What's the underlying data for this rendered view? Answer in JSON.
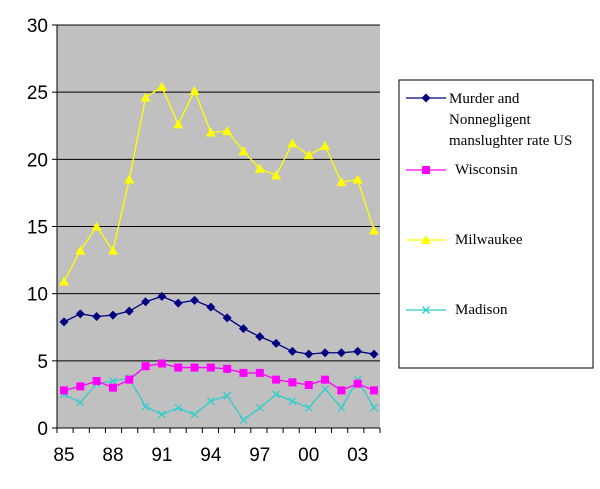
{
  "chart_data": {
    "type": "line",
    "x": [
      1985,
      1986,
      1987,
      1988,
      1989,
      1990,
      1991,
      1992,
      1993,
      1994,
      1995,
      1996,
      1997,
      1998,
      1999,
      2000,
      2001,
      2002,
      2003,
      2004
    ],
    "x_tick_labels": [
      "85",
      "88",
      "91",
      "94",
      "97",
      "00",
      "03"
    ],
    "x_tick_values": [
      1985,
      1988,
      1991,
      1994,
      1997,
      2000,
      2003
    ],
    "y_tick_labels": [
      "0",
      "5",
      "10",
      "15",
      "20",
      "25",
      "30"
    ],
    "ylim": [
      0,
      30
    ],
    "grid": "horizontal",
    "legend_position": "right",
    "plot_background": "#c0c0c0",
    "series": [
      {
        "name_lines": [
          "Murder and",
          "Nonnegligent",
          "manslughter rate US"
        ],
        "color": "#000080",
        "marker": "diamond",
        "values": [
          7.9,
          8.5,
          8.3,
          8.4,
          8.7,
          9.4,
          9.8,
          9.3,
          9.5,
          9.0,
          8.2,
          7.4,
          6.8,
          6.3,
          5.7,
          5.5,
          5.6,
          5.6,
          5.7,
          5.5
        ]
      },
      {
        "name_lines": [
          "Wisconsin"
        ],
        "color": "#ff00ff",
        "marker": "square",
        "values": [
          2.8,
          3.1,
          3.5,
          3.0,
          3.6,
          4.6,
          4.8,
          4.5,
          4.5,
          4.5,
          4.4,
          4.1,
          4.1,
          3.6,
          3.4,
          3.2,
          3.6,
          2.8,
          3.3,
          2.8
        ]
      },
      {
        "name_lines": [
          "Milwaukee"
        ],
        "color": "#ffff00",
        "marker": "triangle",
        "values": [
          10.9,
          13.2,
          15.0,
          13.2,
          18.5,
          24.6,
          25.4,
          22.6,
          25.1,
          22.0,
          22.1,
          20.6,
          19.3,
          18.8,
          21.2,
          20.3,
          21.0,
          18.3,
          18.5,
          14.7
        ]
      },
      {
        "name_lines": [
          "Madison"
        ],
        "color": "#33cccc",
        "marker": "x",
        "values": [
          2.5,
          1.9,
          3.3,
          3.5,
          3.7,
          1.6,
          1.0,
          1.5,
          1.0,
          2.0,
          2.4,
          0.6,
          1.5,
          2.5,
          2.0,
          1.5,
          2.9,
          1.5,
          3.6,
          1.5
        ]
      }
    ]
  }
}
